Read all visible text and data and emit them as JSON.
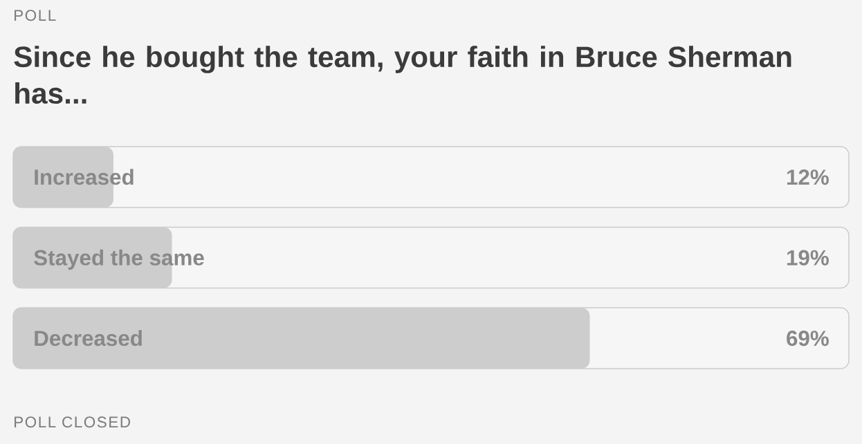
{
  "chart_data": {
    "type": "bar",
    "orientation": "horizontal",
    "title": "Since he bought the team, your faith in Bruce Sherman has...",
    "annotations": [
      "POLL",
      "POLL CLOSED"
    ],
    "categories": [
      "Increased",
      "Stayed the same",
      "Decreased"
    ],
    "values": [
      12,
      19,
      69
    ],
    "value_labels": [
      "12%",
      "19%",
      "69%"
    ],
    "color": "#cdcdcd",
    "xlim": [
      0,
      100
    ]
  }
}
